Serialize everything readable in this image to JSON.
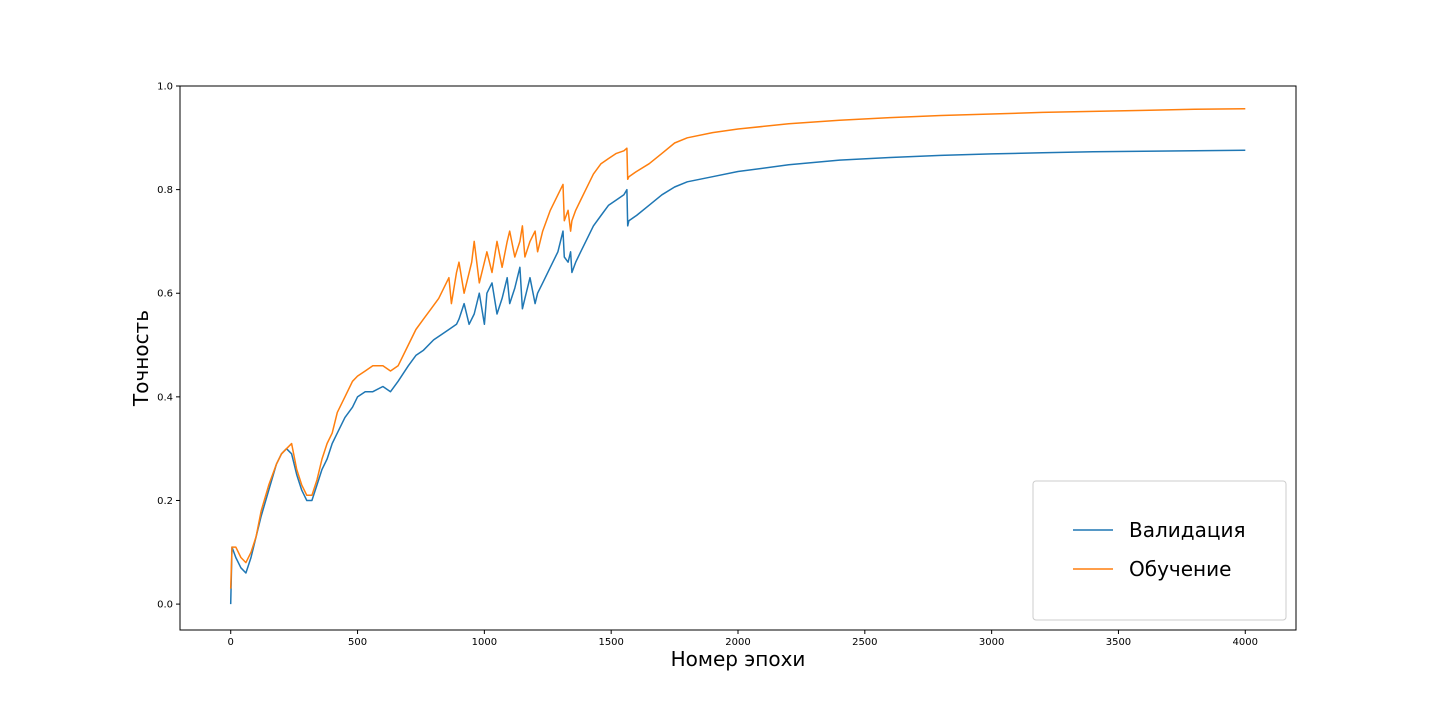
{
  "chart_data": {
    "type": "line",
    "title": "",
    "xlabel": "Номер эпохи",
    "ylabel": "Точность",
    "xlim": [
      -200,
      4200
    ],
    "ylim": [
      -0.05,
      1.0
    ],
    "x_ticks": [
      0,
      500,
      1000,
      1500,
      2000,
      2500,
      3000,
      3500,
      4000
    ],
    "x_tick_labels": [
      "0",
      "500",
      "1000",
      "1500",
      "2000",
      "2500",
      "3000",
      "3500",
      "4000"
    ],
    "y_ticks": [
      0.0,
      0.2,
      0.4,
      0.6,
      0.8,
      1.0
    ],
    "y_tick_labels": [
      "0.0",
      "0.2",
      "0.4",
      "0.6",
      "0.8",
      "1.0"
    ],
    "grid": false,
    "legend_position": "lower-right",
    "series": [
      {
        "name": "Валидация",
        "color": "#1f77b4",
        "x": [
          0,
          5,
          20,
          40,
          60,
          80,
          100,
          120,
          150,
          180,
          200,
          220,
          240,
          260,
          280,
          300,
          320,
          340,
          360,
          380,
          400,
          420,
          450,
          480,
          500,
          530,
          560,
          600,
          630,
          660,
          700,
          730,
          760,
          800,
          830,
          860,
          890,
          900,
          920,
          940,
          960,
          980,
          1000,
          1010,
          1030,
          1050,
          1070,
          1090,
          1100,
          1120,
          1140,
          1150,
          1160,
          1180,
          1200,
          1210,
          1230,
          1260,
          1290,
          1310,
          1315,
          1330,
          1340,
          1345,
          1360,
          1380,
          1400,
          1430,
          1460,
          1490,
          1520,
          1550,
          1562,
          1565,
          1570,
          1600,
          1650,
          1700,
          1750,
          1800,
          1900,
          2000,
          2200,
          2400,
          2600,
          2800,
          3000,
          3200,
          3400,
          3600,
          3800,
          4000
        ],
        "y": [
          0.0,
          0.11,
          0.09,
          0.07,
          0.06,
          0.09,
          0.13,
          0.17,
          0.22,
          0.27,
          0.29,
          0.3,
          0.29,
          0.25,
          0.22,
          0.2,
          0.2,
          0.23,
          0.26,
          0.28,
          0.31,
          0.33,
          0.36,
          0.38,
          0.4,
          0.41,
          0.41,
          0.42,
          0.41,
          0.43,
          0.46,
          0.48,
          0.49,
          0.51,
          0.52,
          0.53,
          0.54,
          0.55,
          0.58,
          0.54,
          0.56,
          0.6,
          0.54,
          0.6,
          0.62,
          0.56,
          0.59,
          0.63,
          0.58,
          0.61,
          0.65,
          0.57,
          0.59,
          0.63,
          0.58,
          0.6,
          0.62,
          0.65,
          0.68,
          0.72,
          0.67,
          0.66,
          0.68,
          0.64,
          0.66,
          0.68,
          0.7,
          0.73,
          0.75,
          0.77,
          0.78,
          0.79,
          0.8,
          0.73,
          0.74,
          0.75,
          0.77,
          0.79,
          0.805,
          0.815,
          0.825,
          0.835,
          0.848,
          0.857,
          0.862,
          0.866,
          0.869,
          0.871,
          0.873,
          0.874,
          0.875,
          0.876
        ]
      },
      {
        "name": "Обучение",
        "color": "#ff7f0e",
        "x": [
          0,
          5,
          20,
          40,
          60,
          80,
          100,
          120,
          150,
          180,
          200,
          220,
          240,
          260,
          280,
          300,
          320,
          340,
          360,
          380,
          400,
          420,
          450,
          480,
          500,
          530,
          560,
          600,
          630,
          660,
          700,
          730,
          760,
          790,
          820,
          840,
          860,
          870,
          890,
          900,
          920,
          950,
          960,
          980,
          1000,
          1010,
          1030,
          1050,
          1070,
          1090,
          1100,
          1120,
          1140,
          1150,
          1160,
          1180,
          1200,
          1210,
          1230,
          1260,
          1290,
          1310,
          1315,
          1330,
          1340,
          1345,
          1360,
          1380,
          1400,
          1430,
          1460,
          1490,
          1520,
          1550,
          1562,
          1565,
          1570,
          1600,
          1650,
          1700,
          1750,
          1800,
          1900,
          2000,
          2200,
          2400,
          2600,
          2800,
          3000,
          3200,
          3400,
          3600,
          3800,
          4000
        ],
        "y": [
          0.03,
          0.11,
          0.11,
          0.09,
          0.08,
          0.1,
          0.13,
          0.18,
          0.23,
          0.27,
          0.29,
          0.3,
          0.31,
          0.26,
          0.23,
          0.21,
          0.21,
          0.24,
          0.28,
          0.31,
          0.33,
          0.37,
          0.4,
          0.43,
          0.44,
          0.45,
          0.46,
          0.46,
          0.45,
          0.46,
          0.5,
          0.53,
          0.55,
          0.57,
          0.59,
          0.61,
          0.63,
          0.58,
          0.64,
          0.66,
          0.6,
          0.66,
          0.7,
          0.62,
          0.66,
          0.68,
          0.64,
          0.7,
          0.65,
          0.7,
          0.72,
          0.67,
          0.7,
          0.73,
          0.67,
          0.7,
          0.72,
          0.68,
          0.72,
          0.76,
          0.79,
          0.81,
          0.74,
          0.76,
          0.72,
          0.74,
          0.76,
          0.78,
          0.8,
          0.83,
          0.85,
          0.86,
          0.87,
          0.875,
          0.88,
          0.82,
          0.825,
          0.835,
          0.85,
          0.87,
          0.89,
          0.9,
          0.91,
          0.917,
          0.927,
          0.934,
          0.939,
          0.943,
          0.946,
          0.949,
          0.951,
          0.953,
          0.955,
          0.956
        ]
      }
    ]
  }
}
